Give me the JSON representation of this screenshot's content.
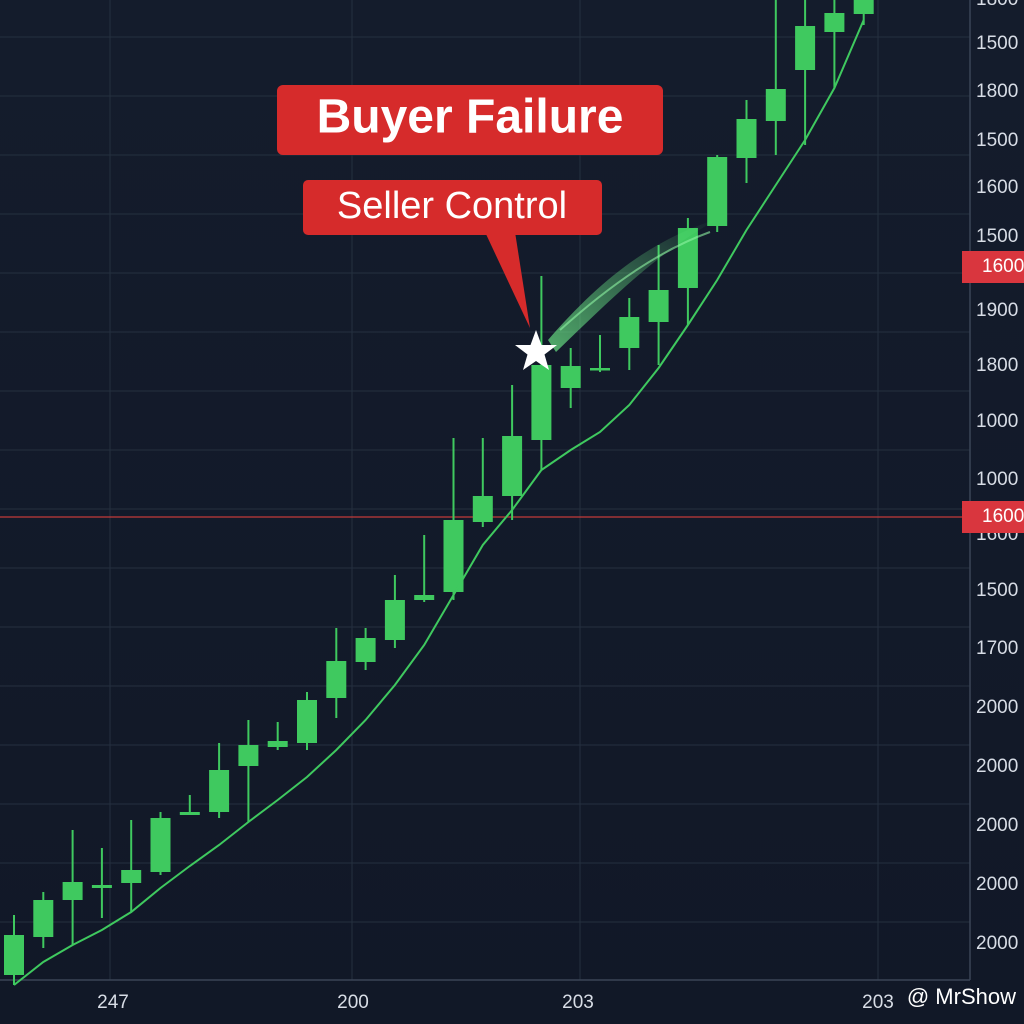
{
  "chart_data": {
    "type": "candlestick",
    "title": "Buyer Failure",
    "subtitle": "Seller Control",
    "watermark": "@ MrShow",
    "ylim": [
      0,
      100
    ],
    "color": "#3fc95f",
    "series": [
      {
        "open": [
          2.5,
          6.3,
          10,
          11.2,
          11.7,
          12.8,
          18.5,
          18.8,
          23.4,
          25.3,
          25.7,
          30.2,
          33.8,
          36,
          40,
          40.8,
          47.8,
          50.4,
          56,
          61.2,
          63,
          65.2,
          67.8,
          71.2,
          77.4,
          84.2,
          87.9,
          93,
          96.8,
          98.6
        ],
        "close": [
          6.5,
          10,
          11.8,
          11.5,
          13,
          18.2,
          18.8,
          23,
          25.5,
          25.9,
          30,
          33.9,
          36.2,
          40,
          40.5,
          48,
          50.4,
          56.4,
          63.5,
          63.4,
          63.2,
          68.3,
          71,
          77.2,
          84.3,
          88.1,
          91.1,
          97.4,
          98.7,
          100
        ],
        "high": [
          8.5,
          10.8,
          17,
          15.2,
          18,
          18.8,
          20.5,
          25.7,
          28,
          27.8,
          30.8,
          37.2,
          37.2,
          42.5,
          46.5,
          56.2,
          56.2,
          61.5,
          72.4,
          65.2,
          66.5,
          70.2,
          75.5,
          78.2,
          84.5,
          90,
          100,
          100,
          100,
          100
        ],
        "low": [
          1.5,
          5.2,
          5.5,
          8.2,
          8.8,
          12.5,
          18.5,
          18.2,
          17.8,
          25,
          25,
          28.2,
          33,
          35.2,
          39.8,
          40,
          47.3,
          48,
          53,
          59.2,
          62.8,
          63,
          63.5,
          67.5,
          76.8,
          81.7,
          84.5,
          85.5,
          91.2,
          97.5
        ]
      }
    ],
    "support_line": {
      "color": "#3fc95f",
      "values": [
        1.5,
        3.8,
        5.5,
        7,
        8.8,
        11.2,
        13.4,
        15.5,
        17.8,
        20,
        22.3,
        25,
        28,
        31.5,
        35.5,
        40.5,
        45.5,
        49,
        53,
        55,
        56.8,
        59.5,
        63.2,
        67.5,
        72,
        77,
        81.5,
        86,
        91.2,
        98
      ]
    },
    "y_axis_labels": [
      "1800",
      "1500",
      "1800",
      "1500",
      "1600",
      "1500",
      "1900",
      "1800",
      "1000",
      "1000",
      "1600",
      "1500",
      "1700",
      "2000",
      "2000",
      "2000",
      "2000",
      "2000"
    ],
    "price_markers": [
      {
        "value": 73.3,
        "label": "1600",
        "line": false
      },
      {
        "value": 48.3,
        "label": "1600",
        "line": true
      }
    ],
    "x_axis_labels": [
      "247",
      "200",
      "203",
      "203"
    ],
    "grid": true
  }
}
